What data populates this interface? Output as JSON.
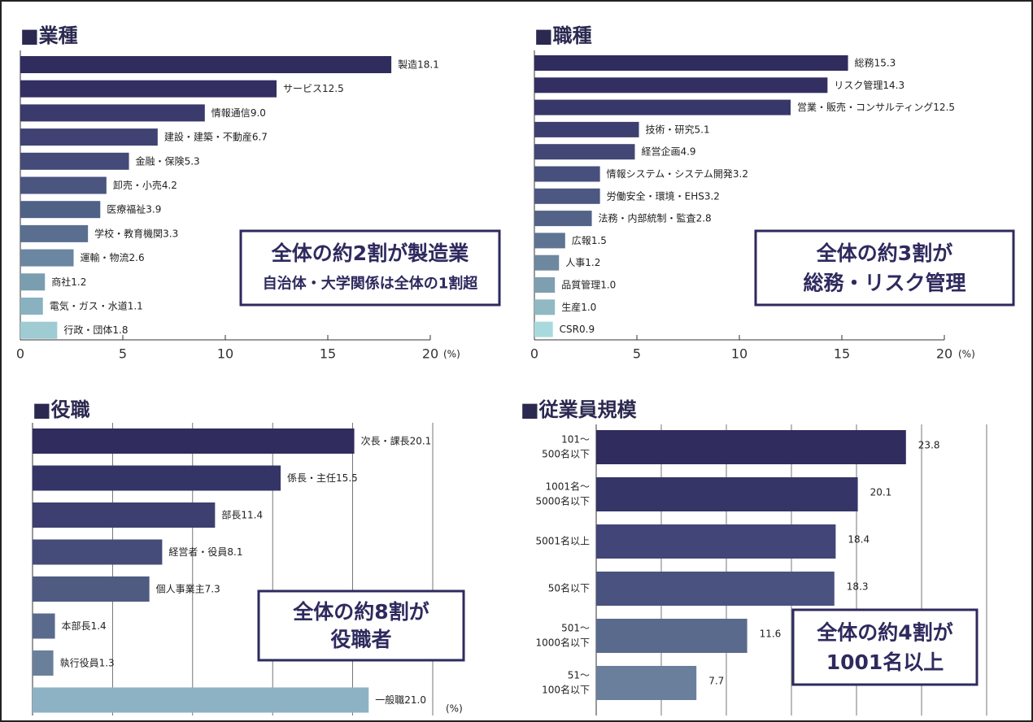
{
  "chart_data": [
    {
      "type": "bar",
      "orientation": "horizontal",
      "title": "■業種",
      "categories": [
        "製造",
        "サービス",
        "情報通信",
        "建設・建築・不動産",
        "金融・保険",
        "卸売・小売",
        "医療福祉",
        "学校・教育機関",
        "運輸・物流",
        "商社",
        "電気・ガス・水道",
        "行政・団体"
      ],
      "values": [
        18.1,
        12.5,
        9.0,
        6.7,
        5.3,
        4.2,
        3.9,
        3.3,
        2.6,
        1.2,
        1.1,
        1.8
      ],
      "value_labels": [
        "18.1",
        "12.5",
        "9.0",
        "6.7",
        "5.3",
        "4.2",
        "3.9",
        "3.3",
        "2.6",
        "1.2",
        "1.1",
        "1.8"
      ],
      "colors": [
        "#302c5e",
        "#332f63",
        "#3a3a6c",
        "#3f4272",
        "#444b78",
        "#4a5580",
        "#506186",
        "#5a6f90",
        "#6a86a0",
        "#7a9db0",
        "#8ab1c0",
        "#9fcbd3"
      ],
      "xlim": [
        0,
        20
      ],
      "xticks": [
        0,
        5,
        10,
        15,
        20
      ],
      "xlabel": "(%)",
      "grid": false,
      "show_xtick_labels": true,
      "category_position": "inline",
      "annotation": [
        "全体の約2割が製造業",
        "自治体・大学関係は全体の1割超"
      ]
    },
    {
      "type": "bar",
      "orientation": "horizontal",
      "title": "■職種",
      "categories": [
        "総務",
        "リスク管理",
        "営業・販売・コンサルティング",
        "技術・研究",
        "経営企画",
        "情報システム・システム開発",
        "労働安全・環境・EHS",
        "法務・内部統制・監査",
        "広報",
        "人事",
        "品質管理",
        "生産",
        "CSR"
      ],
      "values": [
        15.3,
        14.3,
        12.5,
        5.1,
        4.9,
        3.2,
        3.2,
        2.8,
        1.5,
        1.2,
        1.0,
        1.0,
        0.9
      ],
      "value_labels": [
        "15.3",
        "14.3",
        "12.5",
        "5.1",
        "4.9",
        "3.2",
        "3.2",
        "2.8",
        "1.5",
        "1.2",
        "1.0",
        "1.0",
        "0.9"
      ],
      "colors": [
        "#302c5e",
        "#332f63",
        "#383769",
        "#3d3f70",
        "#424776",
        "#47507c",
        "#4c5882",
        "#536388",
        "#5e7492",
        "#6d889f",
        "#7e9fb0",
        "#90b9c3",
        "#a8dadd"
      ],
      "xlim": [
        0,
        20
      ],
      "xticks": [
        0,
        5,
        10,
        15,
        20
      ],
      "xlabel": "(%)",
      "grid": false,
      "show_xtick_labels": true,
      "category_position": "inline",
      "annotation": [
        "全体の約3割が",
        "総務・リスク管理"
      ]
    },
    {
      "type": "bar",
      "orientation": "horizontal",
      "title": "■役職",
      "categories": [
        "次長・課長",
        "係長・主任",
        "部長",
        "経営者・役員",
        "個人事業主",
        "本部長",
        "執行役員",
        "一般職"
      ],
      "values": [
        20.1,
        15.5,
        11.4,
        8.1,
        7.3,
        1.4,
        1.3,
        21.0
      ],
      "value_labels": [
        "20.1",
        "15.5",
        "11.4",
        "8.1",
        "7.3",
        "1.4",
        "1.3",
        "21.0"
      ],
      "colors": [
        "#302c5e",
        "#353467",
        "#3d3f70",
        "#464c79",
        "#505b82",
        "#5a6a8c",
        "#6a809a",
        "#8db2c4"
      ],
      "xlim": [
        0,
        25
      ],
      "xticks": [
        0,
        5,
        10,
        15,
        20,
        25
      ],
      "xlabel": "(%)",
      "grid": true,
      "show_xtick_labels": false,
      "category_position": "inline",
      "annotation": [
        "全体の約8割が",
        "役職者"
      ]
    },
    {
      "type": "bar",
      "orientation": "horizontal",
      "title": "■従業員規模",
      "categories": [
        [
          "101～",
          "500名以下"
        ],
        [
          "1001名～",
          "5000名以下"
        ],
        [
          "5001名以上"
        ],
        [
          "50名以下"
        ],
        [
          "501～",
          "1000名以下"
        ],
        [
          "51～",
          "100名以下"
        ]
      ],
      "values": [
        23.8,
        20.1,
        18.4,
        18.3,
        11.6,
        7.7
      ],
      "colors": [
        "#302c5e",
        "#363568",
        "#424578",
        "#4a5280",
        "#5a6a8c",
        "#6a7f9c"
      ],
      "xlim": [
        0,
        30
      ],
      "xticks": [
        0,
        5,
        10,
        15,
        20,
        25,
        30
      ],
      "grid": true,
      "show_xtick_labels": false,
      "category_position": "left",
      "annotation": [
        "全体の約4割が",
        "1001名以上"
      ]
    }
  ]
}
